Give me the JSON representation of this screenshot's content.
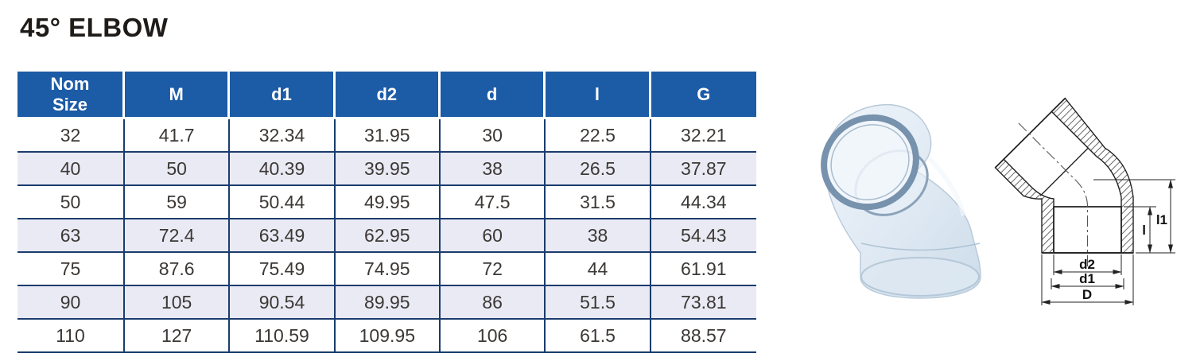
{
  "page": {
    "title": "45° ELBOW"
  },
  "table": {
    "columns": [
      "Nom Size",
      "M",
      "d1",
      "d2",
      "d",
      "l",
      "G"
    ],
    "rows": [
      [
        "32",
        "41.7",
        "32.34",
        "31.95",
        "30",
        "22.5",
        "32.21"
      ],
      [
        "40",
        "50",
        "40.39",
        "39.95",
        "38",
        "26.5",
        "37.87"
      ],
      [
        "50",
        "59",
        "50.44",
        "49.95",
        "47.5",
        "31.5",
        "44.34"
      ],
      [
        "63",
        "72.4",
        "63.49",
        "62.95",
        "60",
        "38",
        "54.43"
      ],
      [
        "75",
        "87.6",
        "75.49",
        "74.95",
        "72",
        "44",
        "61.91"
      ],
      [
        "90",
        "105",
        "90.54",
        "89.95",
        "86",
        "51.5",
        "73.81"
      ],
      [
        "110",
        "127",
        "110.59",
        "109.95",
        "106",
        "61.5",
        "88.57"
      ]
    ]
  },
  "photo": {
    "name": "clear-transparent-45-elbow-fitting"
  },
  "diagram": {
    "name": "45-elbow-dimension-drawing",
    "labels": {
      "l1": "l1",
      "l": "l",
      "d2": "d2",
      "d1": "d1",
      "D": "D"
    }
  },
  "colors": {
    "header_blue": "#1c5ba6",
    "border_navy": "#1b3c6d",
    "row_stripe": "#e9eaf4",
    "title_black": "#1e1b19"
  }
}
